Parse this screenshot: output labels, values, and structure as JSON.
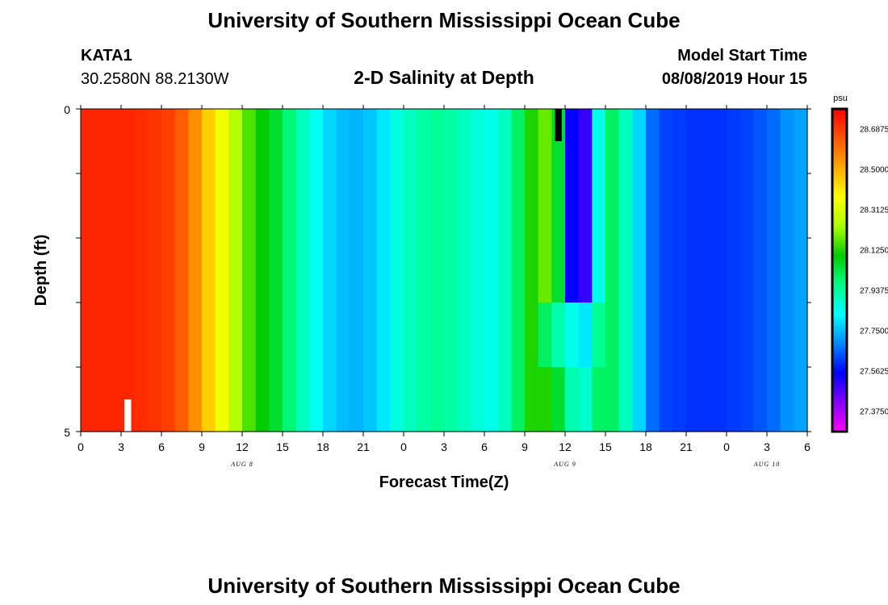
{
  "header": {
    "title": "University of Southern Mississippi Ocean Cube",
    "station_id": "KATA1",
    "station_coords": "30.2580N 88.2130W",
    "plot_title": "2-D Salinity at Depth",
    "model_start_label": "Model Start Time",
    "model_start_value": "08/08/2019 Hour 15"
  },
  "footer": {
    "title": "University of Southern Mississippi Ocean Cube"
  },
  "chart_data": {
    "type": "heatmap",
    "title": "2-D Salinity at Depth",
    "xlabel": "Forecast Time(Z)",
    "ylabel": "Depth (ft)",
    "ylim": [
      0,
      5
    ],
    "y_tick_labels": [
      "0",
      "5"
    ],
    "x_range_hours": [
      0,
      54
    ],
    "x_tick_labels": [
      "0",
      "3",
      "6",
      "9",
      "12",
      "15",
      "18",
      "21",
      "0",
      "3",
      "6",
      "9",
      "12",
      "15",
      "18",
      "21",
      "0",
      "3",
      "6"
    ],
    "date_labels": [
      {
        "label": "AUG 8",
        "hour": 12
      },
      {
        "label": "AUG 9",
        "hour": 36
      },
      {
        "label": "AUG 10",
        "hour": 51
      }
    ],
    "units": "psu",
    "colorbar_ticks": [
      "28.6875",
      "28.5000",
      "28.3125",
      "28.1250",
      "27.9375",
      "27.7500",
      "27.5625",
      "27.3750"
    ],
    "colorbar_min": 27.28,
    "colorbar_max": 28.78,
    "colorbar_colors": [
      "#ff00ff",
      "#8800ff",
      "#0000ff",
      "#0088ff",
      "#00ffff",
      "#00ff88",
      "#00cc00",
      "#aaff00",
      "#ffff00",
      "#ffaa00",
      "#ff5500",
      "#ff0000"
    ],
    "layers": [
      0.5,
      1.5,
      2.5,
      3.5,
      4.5
    ],
    "surface_salinity_by_hour": [
      28.72,
      28.72,
      28.72,
      28.72,
      28.71,
      28.7,
      28.68,
      28.63,
      28.55,
      28.45,
      28.35,
      28.25,
      28.16,
      28.1,
      28.05,
      27.98,
      27.9,
      27.84,
      27.78,
      27.75,
      27.74,
      27.76,
      27.8,
      27.86,
      27.9,
      27.93,
      27.95,
      27.93,
      27.9,
      27.87,
      27.85,
      27.9,
      28.0,
      28.12,
      28.18,
      28.05,
      27.55,
      27.5,
      27.85,
      28.0,
      27.9,
      27.78,
      27.66,
      27.62,
      27.61,
      27.6,
      27.6,
      27.6,
      27.61,
      27.62,
      27.64,
      27.66,
      27.7,
      27.72
    ],
    "lower_layer_overrides": [
      {
        "layer": 4.5,
        "hour": 33,
        "value": 28.12
      },
      {
        "layer": 4.5,
        "hour": 34,
        "value": 28.12
      },
      {
        "layer": 4.5,
        "hour": 35,
        "value": 28.05
      },
      {
        "layer": 4.5,
        "hour": 36,
        "value": 27.92
      },
      {
        "layer": 4.5,
        "hour": 37,
        "value": 27.88
      },
      {
        "layer": 4.5,
        "hour": 38,
        "value": 28.0
      },
      {
        "layer": 3.5,
        "hour": 34,
        "value": 28.0
      },
      {
        "layer": 3.5,
        "hour": 35,
        "value": 27.92
      },
      {
        "layer": 3.5,
        "hour": 36,
        "value": 27.85
      },
      {
        "layer": 3.5,
        "hour": 37,
        "value": 27.8
      },
      {
        "layer": 3.5,
        "hour": 38,
        "value": 27.95
      }
    ],
    "missing_cells": [
      {
        "hour": 35,
        "depth_from": 0,
        "depth_to": 0.5
      },
      {
        "hour": 3,
        "depth_from": 4.5,
        "depth_to": 5
      }
    ],
    "grid": false
  }
}
